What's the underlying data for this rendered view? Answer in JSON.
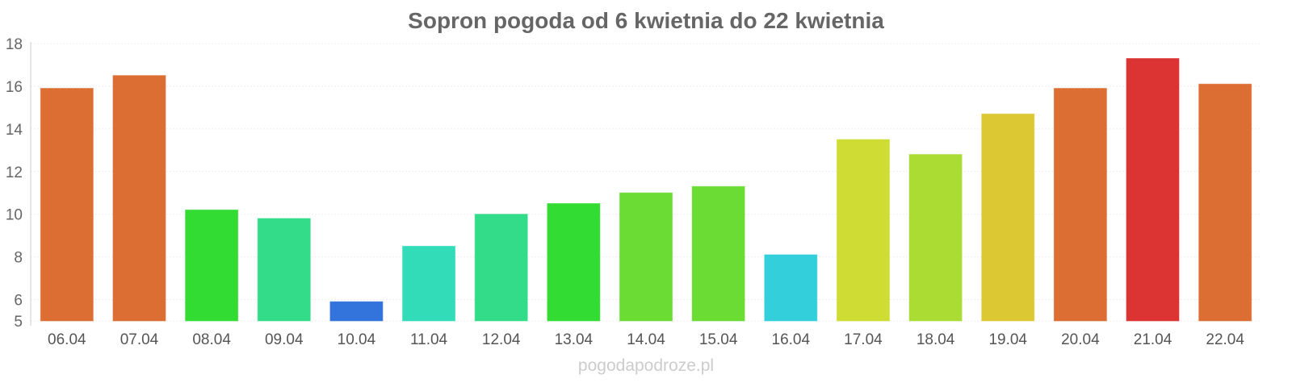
{
  "chart_data": {
    "type": "bar",
    "title": "Sopron pogoda od 6 kwietnia do 22 kwietnia",
    "xlabel": "",
    "ylabel": "",
    "ylim": [
      5,
      18
    ],
    "yticks": [
      5,
      6,
      8,
      10,
      12,
      14,
      16,
      18
    ],
    "grid": true,
    "categories": [
      "06.04",
      "07.04",
      "08.04",
      "09.04",
      "10.04",
      "11.04",
      "12.04",
      "13.04",
      "14.04",
      "15.04",
      "16.04",
      "17.04",
      "18.04",
      "19.04",
      "20.04",
      "21.04",
      "22.04"
    ],
    "values": [
      15.9,
      16.5,
      10.2,
      9.8,
      5.9,
      8.5,
      10.0,
      10.5,
      11.0,
      11.3,
      8.1,
      13.5,
      12.8,
      14.7,
      15.9,
      17.3,
      16.1
    ],
    "colors": [
      "#dc6e33",
      "#dc6e33",
      "#33dc33",
      "#33dc88",
      "#3374dc",
      "#33dcb8",
      "#33dc88",
      "#33dc33",
      "#6adc33",
      "#6adc33",
      "#33d0dc",
      "#cedc33",
      "#aadc33",
      "#dcc833",
      "#dc6e33",
      "#dc3333",
      "#dc6e33"
    ]
  },
  "watermark": "pogodapodroze.pl"
}
